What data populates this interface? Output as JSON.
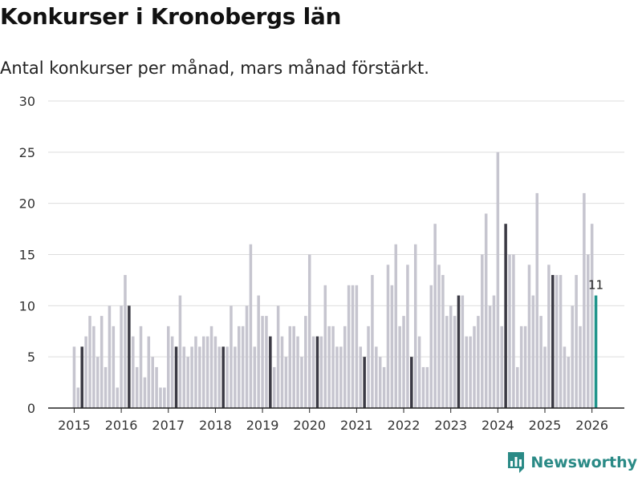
{
  "title": "Konkurser i Kronobergs län",
  "subtitle": "Antal konkurser per månad, mars månad förstärkt.",
  "brand": {
    "name": "Newsworthy",
    "color": "#2a8a86"
  },
  "colors": {
    "regular": "#c6c5cf",
    "highlight": "#3b3a44",
    "latest": "#1f948b",
    "grid": "#dddddd"
  },
  "chart_data": {
    "type": "bar",
    "title": "Konkurser i Kronobergs län",
    "subtitle": "Antal konkurser per månad, mars månad förstärkt.",
    "xlabel": "",
    "ylabel": "",
    "ylim": [
      0,
      30
    ],
    "yticks": [
      0,
      5,
      10,
      15,
      20,
      25,
      30
    ],
    "grid": true,
    "start": "2015-01",
    "xticks": [
      "2015",
      "2016",
      "2017",
      "2018",
      "2019",
      "2020",
      "2021",
      "2022",
      "2023",
      "2024",
      "2025",
      "2026"
    ],
    "highlight_month": 3,
    "values": [
      6,
      2,
      6,
      7,
      9,
      8,
      5,
      9,
      4,
      10,
      8,
      2,
      10,
      13,
      10,
      7,
      4,
      8,
      3,
      7,
      5,
      4,
      2,
      2,
      8,
      7,
      6,
      11,
      6,
      5,
      6,
      7,
      6,
      7,
      7,
      8,
      7,
      6,
      6,
      6,
      10,
      6,
      8,
      8,
      10,
      16,
      6,
      11,
      9,
      9,
      7,
      4,
      10,
      7,
      5,
      8,
      8,
      7,
      5,
      9,
      15,
      7,
      7,
      7,
      12,
      8,
      8,
      6,
      6,
      8,
      12,
      12,
      12,
      6,
      5,
      8,
      13,
      6,
      5,
      4,
      14,
      12,
      16,
      8,
      9,
      14,
      5,
      16,
      7,
      4,
      4,
      12,
      18,
      14,
      13,
      9,
      10,
      9,
      11,
      11,
      7,
      7,
      8,
      9,
      15,
      19,
      10,
      11,
      25,
      8,
      18,
      15,
      15,
      4,
      8,
      8,
      14,
      11,
      21,
      9,
      6,
      14,
      13,
      13,
      13,
      6,
      5,
      10,
      13,
      8,
      21,
      15,
      18,
      11
    ],
    "annotations": [
      {
        "label": "11",
        "target": "latest"
      }
    ]
  }
}
